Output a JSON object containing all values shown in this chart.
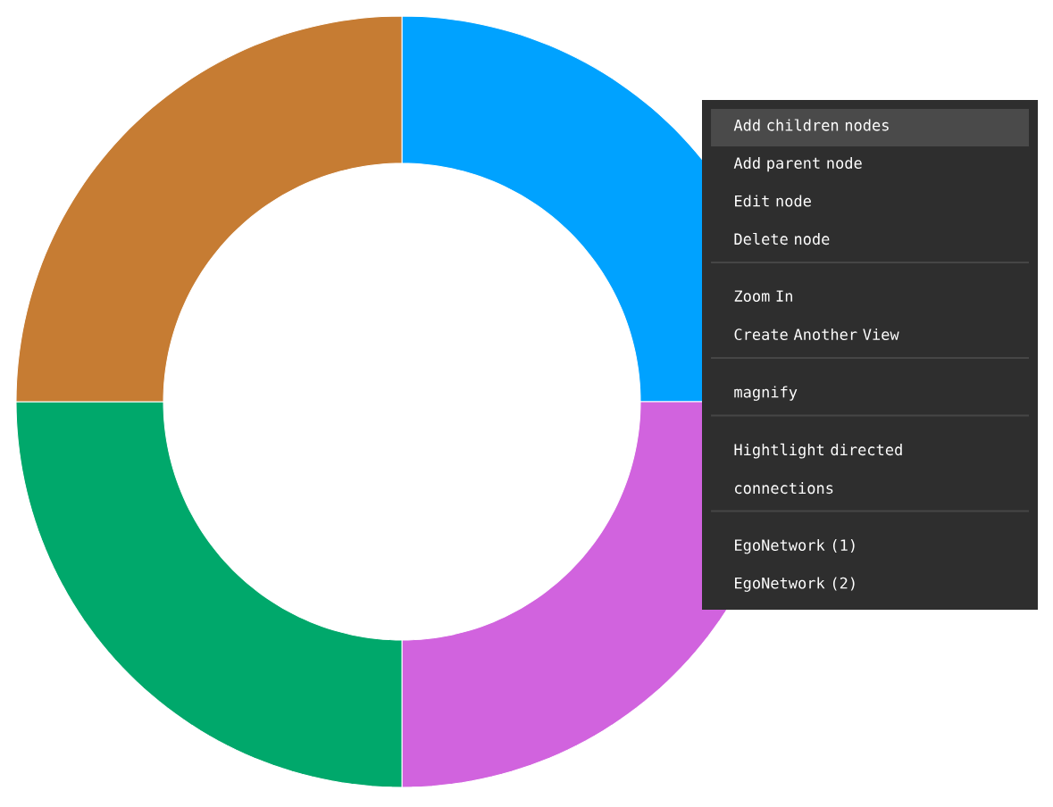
{
  "chart_data": {
    "type": "donut",
    "categories": [
      null,
      null,
      null,
      null
    ],
    "values": [
      25,
      25,
      25,
      25
    ],
    "colors": [
      "#00a2ff",
      "#d163de",
      "#00a86b",
      "#c67c33"
    ],
    "annotations": [
      "Add children nodes",
      "Add parent node",
      "Edit node",
      "Delete node",
      "Zoom In",
      "Create Another View",
      "magnify",
      "Hightlight directed connections",
      "EgoNetwork (1)",
      "EgoNetwork (2)"
    ]
  }
}
